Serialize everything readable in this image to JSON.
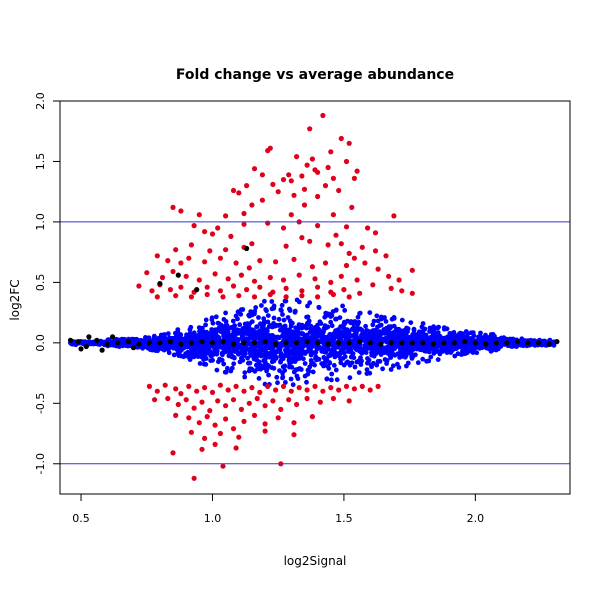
{
  "chart_data": {
    "type": "scatter",
    "title": "Fold change vs average abundance",
    "xlabel": "log2Signal",
    "ylabel": "log2FC",
    "xlim": [
      0.42,
      2.36
    ],
    "ylim": [
      -1.25,
      2.0
    ],
    "x_ticks": [
      0.5,
      1.0,
      1.5,
      2.0
    ],
    "x_tick_labels": [
      "0.5",
      "1.0",
      "1.5",
      "2.0"
    ],
    "y_ticks": [
      -1.0,
      -0.5,
      0.0,
      0.5,
      1.0,
      1.5,
      2.0
    ],
    "y_tick_labels": [
      "-1.0",
      "-0.5",
      "0.0",
      "0.5",
      "1.0",
      "1.5",
      "2.0"
    ],
    "grid": false,
    "reference_lines": [
      {
        "axis": "y",
        "value": 1.0,
        "color": "#3333cc"
      },
      {
        "axis": "y",
        "value": -1.0,
        "color": "#3333cc"
      }
    ],
    "colors": {
      "blue": "#0000ff",
      "red": "#e0001b",
      "black": "#000000"
    },
    "series": [
      {
        "color": "red",
        "points": [
          [
            1.42,
            1.88
          ],
          [
            1.37,
            1.77
          ],
          [
            1.49,
            1.69
          ],
          [
            1.52,
            1.65
          ],
          [
            1.45,
            1.58
          ],
          [
            1.22,
            1.61
          ],
          [
            1.21,
            1.59
          ],
          [
            1.32,
            1.54
          ],
          [
            1.38,
            1.52
          ],
          [
            1.36,
            1.47
          ],
          [
            1.44,
            1.45
          ],
          [
            1.51,
            1.5
          ],
          [
            1.34,
            1.38
          ],
          [
            1.39,
            1.43
          ],
          [
            1.29,
            1.39
          ],
          [
            1.3,
            1.34
          ],
          [
            1.46,
            1.36
          ],
          [
            1.4,
            1.41
          ],
          [
            1.55,
            1.42
          ],
          [
            1.54,
            1.36
          ],
          [
            1.16,
            1.44
          ],
          [
            1.19,
            1.39
          ],
          [
            1.23,
            1.31
          ],
          [
            1.27,
            1.35
          ],
          [
            1.43,
            1.3
          ],
          [
            1.48,
            1.26
          ],
          [
            1.35,
            1.27
          ],
          [
            1.4,
            1.21
          ],
          [
            1.31,
            1.22
          ],
          [
            1.25,
            1.25
          ],
          [
            1.13,
            1.3
          ],
          [
            1.1,
            1.24
          ],
          [
            1.08,
            1.26
          ],
          [
            1.19,
            1.18
          ],
          [
            1.15,
            1.14
          ],
          [
            1.35,
            1.14
          ],
          [
            1.53,
            1.12
          ],
          [
            1.46,
            1.06
          ],
          [
            1.3,
            1.06
          ],
          [
            1.69,
            1.05
          ],
          [
            0.85,
            1.12
          ],
          [
            0.88,
            1.09
          ],
          [
            0.95,
            1.06
          ],
          [
            1.05,
            1.05
          ],
          [
            1.12,
            1.07
          ],
          [
            0.93,
            0.97
          ],
          [
            0.97,
            0.92
          ],
          [
            1.0,
            0.9
          ],
          [
            1.02,
            0.95
          ],
          [
            1.07,
            0.88
          ],
          [
            1.12,
            0.98
          ],
          [
            1.21,
            0.99
          ],
          [
            1.27,
            0.95
          ],
          [
            1.33,
            1.0
          ],
          [
            1.4,
            0.97
          ],
          [
            1.51,
            0.96
          ],
          [
            1.59,
            0.95
          ],
          [
            1.62,
            0.91
          ],
          [
            1.47,
            0.89
          ],
          [
            1.37,
            0.84
          ],
          [
            1.34,
            0.87
          ],
          [
            1.44,
            0.81
          ],
          [
            1.49,
            0.82
          ],
          [
            1.28,
            0.8
          ],
          [
            1.15,
            0.82
          ],
          [
            1.12,
            0.79
          ],
          [
            1.05,
            0.77
          ],
          [
            0.99,
            0.76
          ],
          [
            0.86,
            0.77
          ],
          [
            0.92,
            0.81
          ],
          [
            1.57,
            0.79
          ],
          [
            1.62,
            0.76
          ],
          [
            1.52,
            0.74
          ],
          [
            1.54,
            0.7
          ],
          [
            1.66,
            0.72
          ],
          [
            0.79,
            0.72
          ],
          [
            0.83,
            0.68
          ],
          [
            0.88,
            0.66
          ],
          [
            0.91,
            0.7
          ],
          [
            0.97,
            0.67
          ],
          [
            1.03,
            0.7
          ],
          [
            1.09,
            0.66
          ],
          [
            1.14,
            0.62
          ],
          [
            1.18,
            0.68
          ],
          [
            1.24,
            0.67
          ],
          [
            1.31,
            0.69
          ],
          [
            1.38,
            0.63
          ],
          [
            1.43,
            0.66
          ],
          [
            1.51,
            0.64
          ],
          [
            1.58,
            0.66
          ],
          [
            1.63,
            0.61
          ],
          [
            1.67,
            0.55
          ],
          [
            1.71,
            0.52
          ],
          [
            1.76,
            0.6
          ],
          [
            1.61,
            0.48
          ],
          [
            0.75,
            0.58
          ],
          [
            0.81,
            0.54
          ],
          [
            0.85,
            0.59
          ],
          [
            0.9,
            0.55
          ],
          [
            0.95,
            0.52
          ],
          [
            1.01,
            0.57
          ],
          [
            1.06,
            0.53
          ],
          [
            1.11,
            0.56
          ],
          [
            1.16,
            0.51
          ],
          [
            1.22,
            0.54
          ],
          [
            1.27,
            0.52
          ],
          [
            1.33,
            0.56
          ],
          [
            1.39,
            0.53
          ],
          [
            1.45,
            0.5
          ],
          [
            1.49,
            0.55
          ],
          [
            1.55,
            0.52
          ],
          [
            1.72,
            0.43
          ],
          [
            1.76,
            0.41
          ],
          [
            1.68,
            0.45
          ],
          [
            0.72,
            0.47
          ],
          [
            0.77,
            0.43
          ],
          [
            0.8,
            0.48
          ],
          [
            0.84,
            0.44
          ],
          [
            0.88,
            0.46
          ],
          [
            0.93,
            0.42
          ],
          [
            0.98,
            0.46
          ],
          [
            1.03,
            0.43
          ],
          [
            1.08,
            0.47
          ],
          [
            1.13,
            0.44
          ],
          [
            1.18,
            0.46
          ],
          [
            1.23,
            0.42
          ],
          [
            1.28,
            0.45
          ],
          [
            1.34,
            0.43
          ],
          [
            1.4,
            0.46
          ],
          [
            1.45,
            0.42
          ],
          [
            1.5,
            0.44
          ],
          [
            1.56,
            0.41
          ],
          [
            0.79,
            0.38
          ],
          [
            0.86,
            0.39
          ],
          [
            0.92,
            0.38
          ],
          [
            0.98,
            0.4
          ],
          [
            1.04,
            0.38
          ],
          [
            1.1,
            0.39
          ],
          [
            1.16,
            0.38
          ],
          [
            1.22,
            0.4
          ],
          [
            1.28,
            0.38
          ],
          [
            1.34,
            0.39
          ],
          [
            1.4,
            0.38
          ],
          [
            1.46,
            0.4
          ],
          [
            1.52,
            0.38
          ],
          [
            0.76,
            -0.36
          ],
          [
            0.79,
            -0.4
          ],
          [
            0.82,
            -0.35
          ],
          [
            0.86,
            -0.38
          ],
          [
            0.88,
            -0.42
          ],
          [
            0.91,
            -0.36
          ],
          [
            0.94,
            -0.4
          ],
          [
            0.97,
            -0.37
          ],
          [
            1.0,
            -0.41
          ],
          [
            1.03,
            -0.35
          ],
          [
            1.06,
            -0.39
          ],
          [
            1.09,
            -0.36
          ],
          [
            1.12,
            -0.4
          ],
          [
            1.15,
            -0.37
          ],
          [
            1.18,
            -0.41
          ],
          [
            1.21,
            -0.36
          ],
          [
            1.24,
            -0.39
          ],
          [
            1.27,
            -0.36
          ],
          [
            1.3,
            -0.4
          ],
          [
            1.33,
            -0.37
          ],
          [
            1.36,
            -0.39
          ],
          [
            1.39,
            -0.36
          ],
          [
            1.42,
            -0.4
          ],
          [
            1.45,
            -0.37
          ],
          [
            1.48,
            -0.39
          ],
          [
            1.51,
            -0.36
          ],
          [
            1.54,
            -0.38
          ],
          [
            1.57,
            -0.36
          ],
          [
            1.6,
            -0.39
          ],
          [
            1.63,
            -0.36
          ],
          [
            0.78,
            -0.47
          ],
          [
            0.83,
            -0.46
          ],
          [
            0.87,
            -0.51
          ],
          [
            0.9,
            -0.47
          ],
          [
            0.93,
            -0.54
          ],
          [
            0.96,
            -0.49
          ],
          [
            0.99,
            -0.56
          ],
          [
            1.02,
            -0.48
          ],
          [
            1.05,
            -0.52
          ],
          [
            1.08,
            -0.47
          ],
          [
            1.11,
            -0.55
          ],
          [
            1.14,
            -0.5
          ],
          [
            1.17,
            -0.46
          ],
          [
            1.2,
            -0.52
          ],
          [
            1.23,
            -0.48
          ],
          [
            1.26,
            -0.55
          ],
          [
            1.29,
            -0.47
          ],
          [
            1.32,
            -0.51
          ],
          [
            1.36,
            -0.46
          ],
          [
            1.41,
            -0.49
          ],
          [
            1.46,
            -0.46
          ],
          [
            1.52,
            -0.48
          ],
          [
            0.86,
            -0.6
          ],
          [
            0.91,
            -0.62
          ],
          [
            0.95,
            -0.66
          ],
          [
            0.98,
            -0.61
          ],
          [
            1.01,
            -0.68
          ],
          [
            1.05,
            -0.63
          ],
          [
            1.08,
            -0.71
          ],
          [
            1.12,
            -0.65
          ],
          [
            1.16,
            -0.6
          ],
          [
            1.2,
            -0.67
          ],
          [
            1.25,
            -0.62
          ],
          [
            1.31,
            -0.66
          ],
          [
            1.38,
            -0.61
          ],
          [
            0.92,
            -0.74
          ],
          [
            0.97,
            -0.79
          ],
          [
            1.03,
            -0.75
          ],
          [
            1.1,
            -0.78
          ],
          [
            1.2,
            -0.73
          ],
          [
            1.31,
            -0.76
          ],
          [
            1.01,
            -0.84
          ],
          [
            1.09,
            -0.87
          ],
          [
            0.96,
            -0.88
          ],
          [
            0.85,
            -0.91
          ],
          [
            1.04,
            -1.02
          ],
          [
            1.26,
            -1.0
          ],
          [
            0.93,
            -1.12
          ]
        ]
      },
      {
        "color": "black",
        "points": [
          [
            1.13,
            0.78
          ],
          [
            0.87,
            0.56
          ],
          [
            0.8,
            0.49
          ],
          [
            0.94,
            0.44
          ],
          [
            0.46,
            0.02
          ],
          [
            0.49,
            0.01
          ],
          [
            0.52,
            -0.03
          ],
          [
            0.56,
            0.02
          ],
          [
            0.6,
            -0.01
          ],
          [
            0.64,
            0.0
          ],
          [
            0.68,
            0.01
          ],
          [
            0.72,
            -0.01
          ],
          [
            0.76,
            0.0
          ],
          [
            0.8,
            0.0
          ],
          [
            0.84,
            0.01
          ],
          [
            0.88,
            -0.01
          ],
          [
            0.92,
            0.0
          ],
          [
            0.96,
            0.01
          ],
          [
            1.0,
            0.0
          ],
          [
            1.04,
            0.01
          ],
          [
            1.08,
            -0.01
          ],
          [
            1.12,
            0.0
          ],
          [
            1.16,
            0.0
          ],
          [
            1.2,
            0.01
          ],
          [
            1.24,
            -0.01
          ],
          [
            1.28,
            0.0
          ],
          [
            1.32,
            0.0
          ],
          [
            1.36,
            0.01
          ],
          [
            1.4,
            0.0
          ],
          [
            1.44,
            -0.01
          ],
          [
            1.48,
            0.0
          ],
          [
            1.52,
            0.0
          ],
          [
            1.56,
            0.01
          ],
          [
            1.6,
            0.0
          ],
          [
            1.64,
            -0.01
          ],
          [
            1.68,
            0.0
          ],
          [
            1.72,
            0.0
          ],
          [
            1.76,
            0.0
          ],
          [
            1.8,
            0.0
          ],
          [
            1.84,
            -0.01
          ],
          [
            1.88,
            0.0
          ],
          [
            1.92,
            0.0
          ],
          [
            1.96,
            0.01
          ],
          [
            2.0,
            0.0
          ],
          [
            2.04,
            -0.01
          ],
          [
            2.08,
            0.0
          ],
          [
            2.12,
            0.0
          ],
          [
            2.16,
            0.01
          ],
          [
            2.2,
            0.0
          ],
          [
            2.24,
            0.0
          ],
          [
            2.28,
            -0.01
          ],
          [
            2.31,
            0.01
          ],
          [
            0.5,
            -0.05
          ],
          [
            0.53,
            0.05
          ],
          [
            0.58,
            -0.06
          ],
          [
            0.62,
            0.05
          ],
          [
            0.7,
            -0.04
          ]
        ]
      }
    ],
    "dense_series": {
      "color": "blue",
      "x_range": [
        0.46,
        2.3
      ],
      "peak_x": 1.25,
      "peak_half_width": 0.38,
      "tail_half_width": 0.02
    }
  }
}
